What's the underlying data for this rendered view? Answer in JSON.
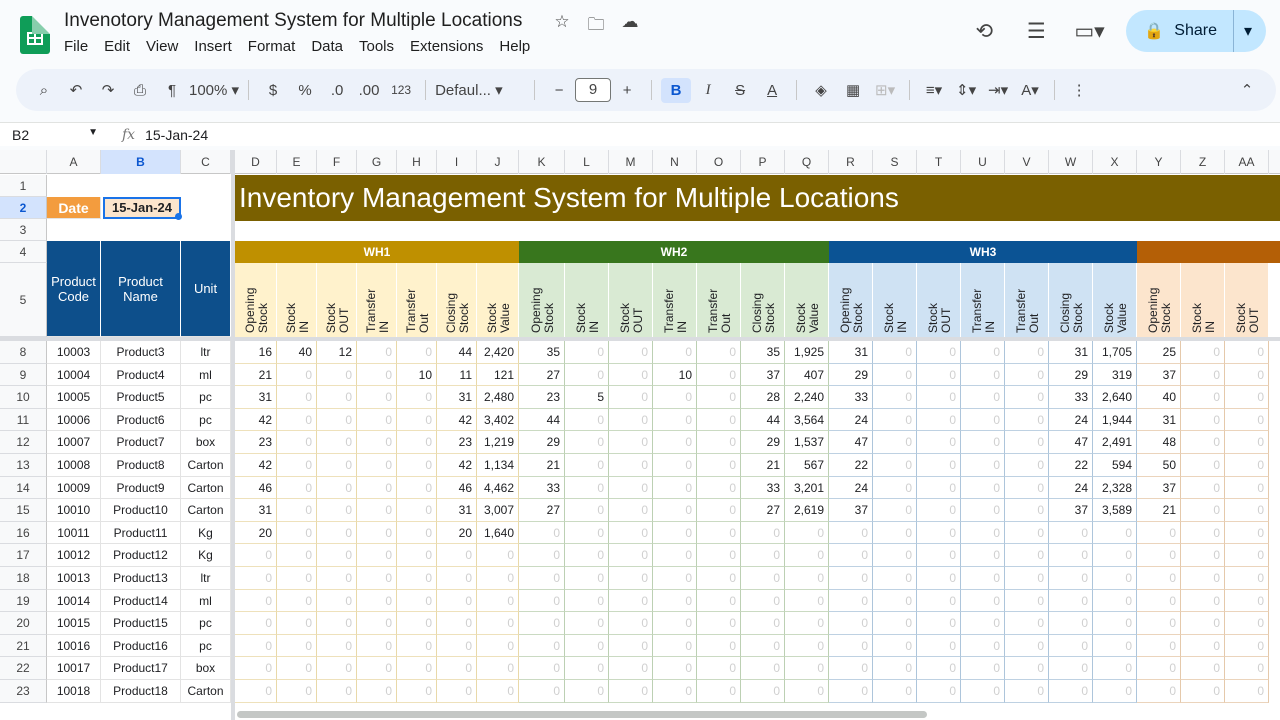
{
  "doc": {
    "title": "Invenotory Management System for Multiple Locations"
  },
  "menu": [
    "File",
    "Edit",
    "View",
    "Insert",
    "Format",
    "Data",
    "Tools",
    "Extensions",
    "Help"
  ],
  "share_label": "Share",
  "toolbar": {
    "zoom": "100%",
    "currency": "$",
    "percent": "%",
    "dec_less": ".0",
    "dec_more": ".00",
    "num_format": "123",
    "font": "Defaul...",
    "font_size": "9"
  },
  "formula": {
    "cell_ref": "B2",
    "value": "15-Jan-24"
  },
  "columns": [
    "A",
    "B",
    "C",
    "D",
    "E",
    "F",
    "G",
    "H",
    "I",
    "J",
    "K",
    "L",
    "M",
    "N",
    "O",
    "P",
    "Q",
    "R",
    "S",
    "T",
    "U",
    "V",
    "W",
    "X",
    "Y",
    "Z",
    "AA"
  ],
  "sheet": {
    "date_label": "Date",
    "date_value": "15-Jan-24",
    "banner": "Inventory Management System for Multiple Locations",
    "headers": {
      "code": "Product Code",
      "name": "Product Name",
      "unit": "Unit"
    },
    "warehouses": [
      {
        "name": "WH1",
        "color": "#bf9000",
        "light": "#fff2cc"
      },
      {
        "name": "WH2",
        "color": "#38761d",
        "light": "#d9ead3"
      },
      {
        "name": "WH3",
        "color": "#0b5394",
        "light": "#cfe2f3"
      },
      {
        "name": "",
        "color": "#b45f06",
        "light": "#fce5cd"
      }
    ],
    "sub_headers": [
      "Opening Stock",
      "Stock IN",
      "Stock OUT",
      "Transfer IN",
      "Transfer Out",
      "Closing Stock",
      "Stock Value"
    ],
    "rows": [
      {
        "row": "8",
        "code": "10003",
        "name": "Product3",
        "unit": "ltr",
        "wh1": [
          "16",
          "40",
          "12",
          "0",
          "0",
          "44",
          "2,420"
        ],
        "wh2": [
          "35",
          "0",
          "0",
          "0",
          "0",
          "35",
          "1,925"
        ],
        "wh3": [
          "31",
          "0",
          "0",
          "0",
          "0",
          "31",
          "1,705"
        ],
        "wh4": [
          "25",
          "0",
          "0"
        ]
      },
      {
        "row": "9",
        "code": "10004",
        "name": "Product4",
        "unit": "ml",
        "wh1": [
          "21",
          "0",
          "0",
          "0",
          "10",
          "11",
          "121"
        ],
        "wh2": [
          "27",
          "0",
          "0",
          "10",
          "0",
          "37",
          "407"
        ],
        "wh3": [
          "29",
          "0",
          "0",
          "0",
          "0",
          "29",
          "319"
        ],
        "wh4": [
          "37",
          "0",
          "0"
        ]
      },
      {
        "row": "10",
        "code": "10005",
        "name": "Product5",
        "unit": "pc",
        "wh1": [
          "31",
          "0",
          "0",
          "0",
          "0",
          "31",
          "2,480"
        ],
        "wh2": [
          "23",
          "5",
          "0",
          "0",
          "0",
          "28",
          "2,240"
        ],
        "wh3": [
          "33",
          "0",
          "0",
          "0",
          "0",
          "33",
          "2,640"
        ],
        "wh4": [
          "40",
          "0",
          "0"
        ]
      },
      {
        "row": "11",
        "code": "10006",
        "name": "Product6",
        "unit": "pc",
        "wh1": [
          "42",
          "0",
          "0",
          "0",
          "0",
          "42",
          "3,402"
        ],
        "wh2": [
          "44",
          "0",
          "0",
          "0",
          "0",
          "44",
          "3,564"
        ],
        "wh3": [
          "24",
          "0",
          "0",
          "0",
          "0",
          "24",
          "1,944"
        ],
        "wh4": [
          "31",
          "0",
          "0"
        ]
      },
      {
        "row": "12",
        "code": "10007",
        "name": "Product7",
        "unit": "box",
        "wh1": [
          "23",
          "0",
          "0",
          "0",
          "0",
          "23",
          "1,219"
        ],
        "wh2": [
          "29",
          "0",
          "0",
          "0",
          "0",
          "29",
          "1,537"
        ],
        "wh3": [
          "47",
          "0",
          "0",
          "0",
          "0",
          "47",
          "2,491"
        ],
        "wh4": [
          "48",
          "0",
          "0"
        ]
      },
      {
        "row": "13",
        "code": "10008",
        "name": "Product8",
        "unit": "Carton",
        "wh1": [
          "42",
          "0",
          "0",
          "0",
          "0",
          "42",
          "1,134"
        ],
        "wh2": [
          "21",
          "0",
          "0",
          "0",
          "0",
          "21",
          "567"
        ],
        "wh3": [
          "22",
          "0",
          "0",
          "0",
          "0",
          "22",
          "594"
        ],
        "wh4": [
          "50",
          "0",
          "0"
        ]
      },
      {
        "row": "14",
        "code": "10009",
        "name": "Product9",
        "unit": "Carton",
        "wh1": [
          "46",
          "0",
          "0",
          "0",
          "0",
          "46",
          "4,462"
        ],
        "wh2": [
          "33",
          "0",
          "0",
          "0",
          "0",
          "33",
          "3,201"
        ],
        "wh3": [
          "24",
          "0",
          "0",
          "0",
          "0",
          "24",
          "2,328"
        ],
        "wh4": [
          "37",
          "0",
          "0"
        ]
      },
      {
        "row": "15",
        "code": "10010",
        "name": "Product10",
        "unit": "Carton",
        "wh1": [
          "31",
          "0",
          "0",
          "0",
          "0",
          "31",
          "3,007"
        ],
        "wh2": [
          "27",
          "0",
          "0",
          "0",
          "0",
          "27",
          "2,619"
        ],
        "wh3": [
          "37",
          "0",
          "0",
          "0",
          "0",
          "37",
          "3,589"
        ],
        "wh4": [
          "21",
          "0",
          "0"
        ]
      },
      {
        "row": "16",
        "code": "10011",
        "name": "Product11",
        "unit": "Kg",
        "wh1": [
          "20",
          "0",
          "0",
          "0",
          "0",
          "20",
          "1,640"
        ],
        "wh2": [
          "0",
          "0",
          "0",
          "0",
          "0",
          "0",
          "0"
        ],
        "wh3": [
          "0",
          "0",
          "0",
          "0",
          "0",
          "0",
          "0"
        ],
        "wh4": [
          "0",
          "0",
          "0"
        ]
      },
      {
        "row": "17",
        "code": "10012",
        "name": "Product12",
        "unit": "Kg",
        "wh1": [
          "0",
          "0",
          "0",
          "0",
          "0",
          "0",
          "0"
        ],
        "wh2": [
          "0",
          "0",
          "0",
          "0",
          "0",
          "0",
          "0"
        ],
        "wh3": [
          "0",
          "0",
          "0",
          "0",
          "0",
          "0",
          "0"
        ],
        "wh4": [
          "0",
          "0",
          "0"
        ]
      },
      {
        "row": "18",
        "code": "10013",
        "name": "Product13",
        "unit": "ltr",
        "wh1": [
          "0",
          "0",
          "0",
          "0",
          "0",
          "0",
          "0"
        ],
        "wh2": [
          "0",
          "0",
          "0",
          "0",
          "0",
          "0",
          "0"
        ],
        "wh3": [
          "0",
          "0",
          "0",
          "0",
          "0",
          "0",
          "0"
        ],
        "wh4": [
          "0",
          "0",
          "0"
        ]
      },
      {
        "row": "19",
        "code": "10014",
        "name": "Product14",
        "unit": "ml",
        "wh1": [
          "0",
          "0",
          "0",
          "0",
          "0",
          "0",
          "0"
        ],
        "wh2": [
          "0",
          "0",
          "0",
          "0",
          "0",
          "0",
          "0"
        ],
        "wh3": [
          "0",
          "0",
          "0",
          "0",
          "0",
          "0",
          "0"
        ],
        "wh4": [
          "0",
          "0",
          "0"
        ]
      },
      {
        "row": "20",
        "code": "10015",
        "name": "Product15",
        "unit": "pc",
        "wh1": [
          "0",
          "0",
          "0",
          "0",
          "0",
          "0",
          "0"
        ],
        "wh2": [
          "0",
          "0",
          "0",
          "0",
          "0",
          "0",
          "0"
        ],
        "wh3": [
          "0",
          "0",
          "0",
          "0",
          "0",
          "0",
          "0"
        ],
        "wh4": [
          "0",
          "0",
          "0"
        ]
      },
      {
        "row": "21",
        "code": "10016",
        "name": "Product16",
        "unit": "pc",
        "wh1": [
          "0",
          "0",
          "0",
          "0",
          "0",
          "0",
          "0"
        ],
        "wh2": [
          "0",
          "0",
          "0",
          "0",
          "0",
          "0",
          "0"
        ],
        "wh3": [
          "0",
          "0",
          "0",
          "0",
          "0",
          "0",
          "0"
        ],
        "wh4": [
          "0",
          "0",
          "0"
        ]
      },
      {
        "row": "22",
        "code": "10017",
        "name": "Product17",
        "unit": "box",
        "wh1": [
          "0",
          "0",
          "0",
          "0",
          "0",
          "0",
          "0"
        ],
        "wh2": [
          "0",
          "0",
          "0",
          "0",
          "0",
          "0",
          "0"
        ],
        "wh3": [
          "0",
          "0",
          "0",
          "0",
          "0",
          "0",
          "0"
        ],
        "wh4": [
          "0",
          "0",
          "0"
        ]
      },
      {
        "row": "23",
        "code": "10018",
        "name": "Product18",
        "unit": "Carton",
        "wh1": [
          "0",
          "0",
          "0",
          "0",
          "0",
          "0",
          "0"
        ],
        "wh2": [
          "0",
          "0",
          "0",
          "0",
          "0",
          "0",
          "0"
        ],
        "wh3": [
          "0",
          "0",
          "0",
          "0",
          "0",
          "0",
          "0"
        ],
        "wh4": [
          "0",
          "0",
          "0"
        ]
      }
    ]
  }
}
